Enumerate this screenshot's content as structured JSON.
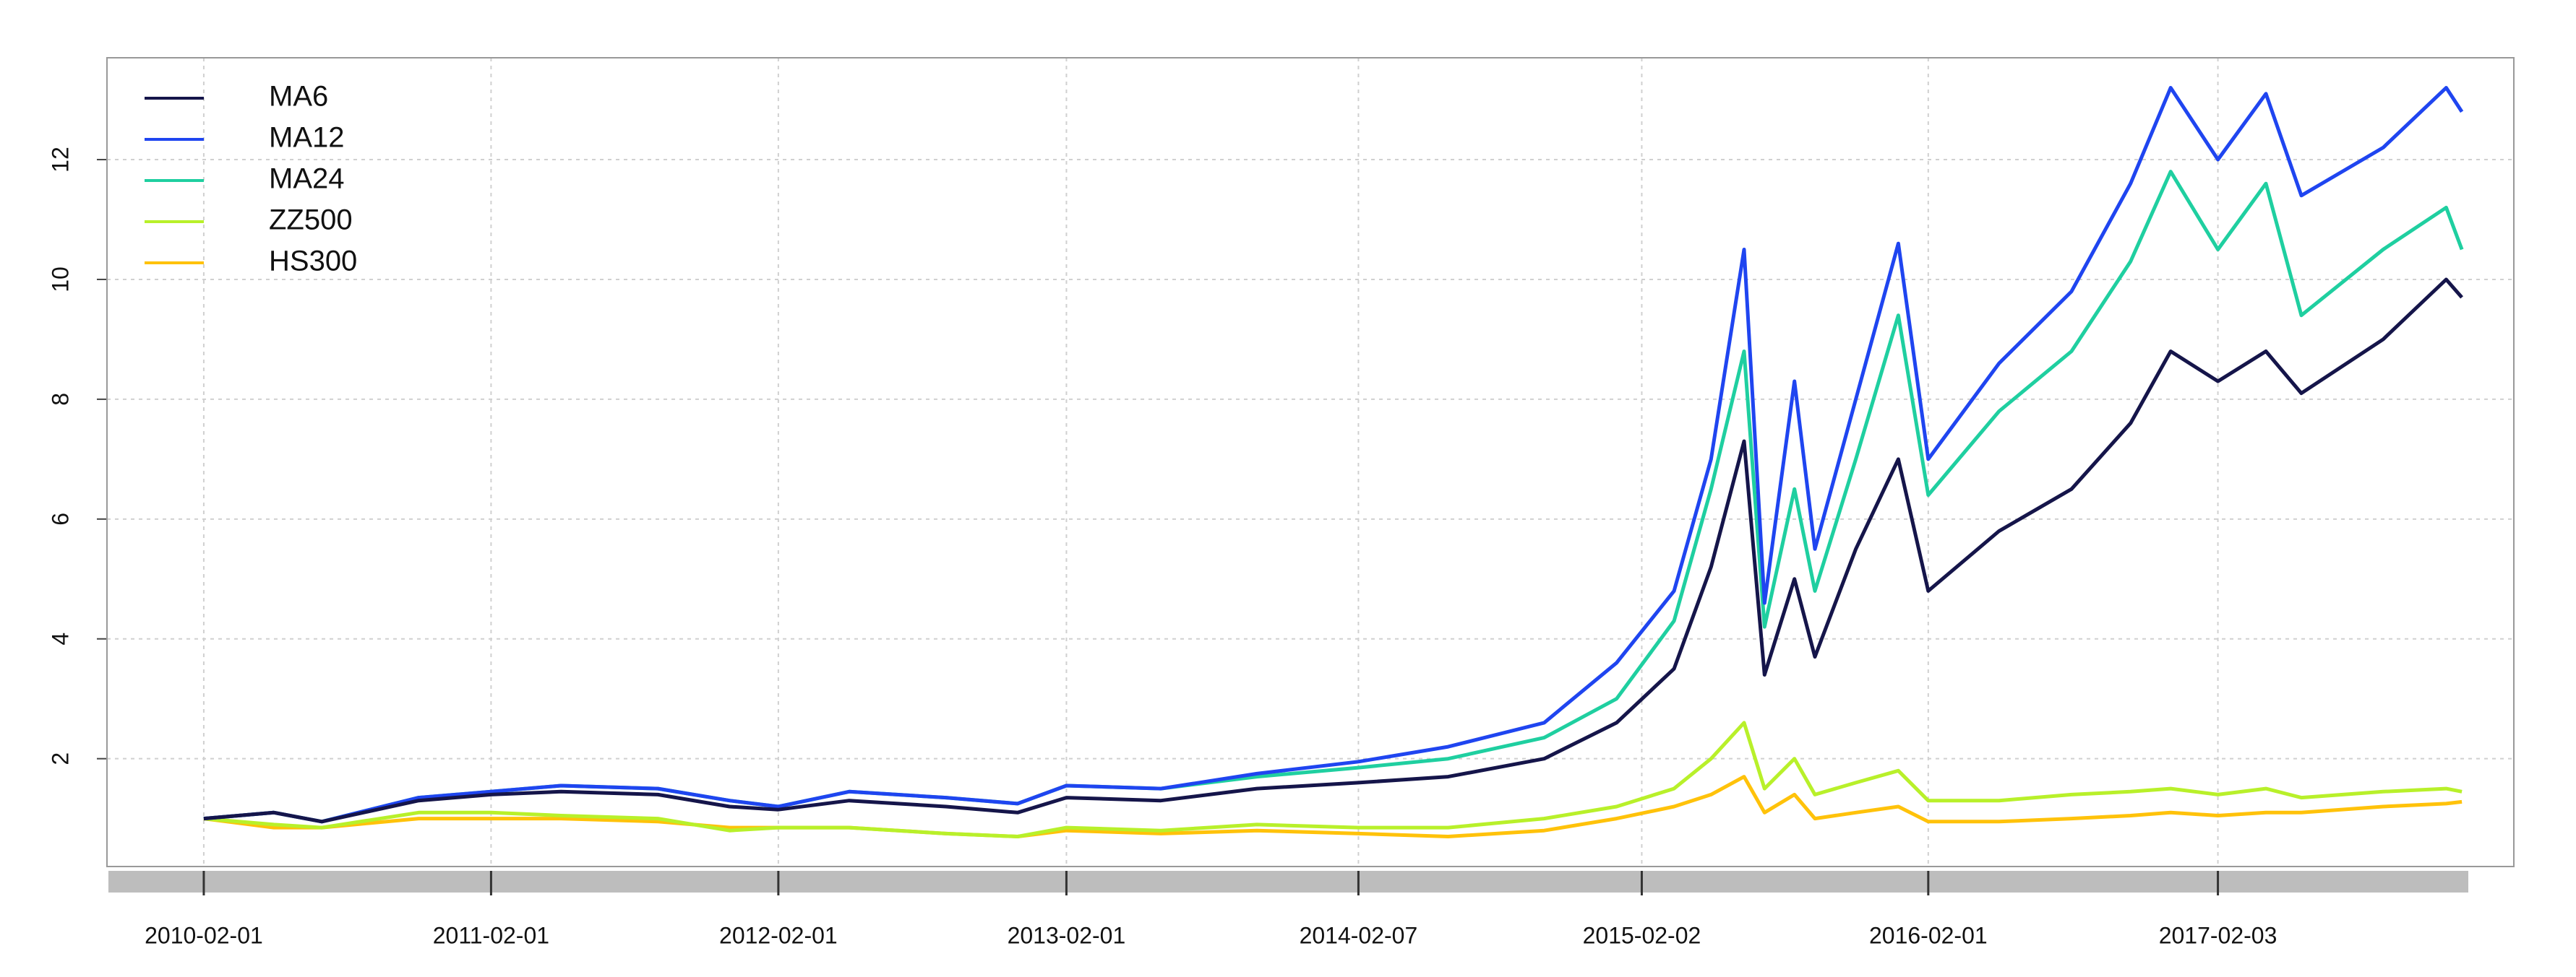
{
  "chart_data": {
    "type": "line",
    "x": [
      "2010-02-01",
      "2010-05-01",
      "2010-07-01",
      "2010-11-01",
      "2011-02-01",
      "2011-05-01",
      "2011-09-01",
      "2011-12-01",
      "2012-02-01",
      "2012-05-01",
      "2012-09-01",
      "2012-12-01",
      "2013-02-01",
      "2013-06-01",
      "2013-10-01",
      "2014-02-07",
      "2014-06-01",
      "2014-10-01",
      "2015-01-01",
      "2015-03-15",
      "2015-05-01",
      "2015-06-12",
      "2015-07-08",
      "2015-08-15",
      "2015-09-10",
      "2015-11-01",
      "2015-12-25",
      "2016-02-01",
      "2016-05-01",
      "2016-08-01",
      "2016-10-15",
      "2016-12-05",
      "2017-02-03",
      "2017-04-05",
      "2017-05-20",
      "2017-09-01",
      "2017-11-20",
      "2017-12-10"
    ],
    "series": [
      {
        "name": "MA6",
        "color": "#15154a",
        "values": [
          1.0,
          1.1,
          0.95,
          1.3,
          1.4,
          1.45,
          1.4,
          1.2,
          1.15,
          1.3,
          1.2,
          1.1,
          1.35,
          1.3,
          1.5,
          1.6,
          1.7,
          2.0,
          2.6,
          3.5,
          5.2,
          7.3,
          3.4,
          5.0,
          3.7,
          5.5,
          7.0,
          4.8,
          5.8,
          6.5,
          7.6,
          8.8,
          8.3,
          8.8,
          8.1,
          9.0,
          10.0,
          9.7
        ]
      },
      {
        "name": "MA12",
        "color": "#1f45f0",
        "values": [
          1.0,
          1.1,
          0.95,
          1.35,
          1.45,
          1.55,
          1.5,
          1.3,
          1.2,
          1.45,
          1.35,
          1.25,
          1.55,
          1.5,
          1.75,
          1.95,
          2.2,
          2.6,
          3.6,
          4.8,
          7.0,
          10.5,
          4.6,
          8.3,
          5.5,
          8.0,
          10.6,
          7.0,
          8.6,
          9.8,
          11.6,
          13.2,
          12.0,
          13.1,
          11.4,
          12.2,
          13.2,
          12.8
        ]
      },
      {
        "name": "MA24",
        "color": "#1fcfa0",
        "values": [
          1.0,
          1.1,
          0.95,
          1.35,
          1.45,
          1.55,
          1.5,
          1.3,
          1.2,
          1.45,
          1.35,
          1.25,
          1.55,
          1.5,
          1.7,
          1.85,
          2.0,
          2.35,
          3.0,
          4.3,
          6.5,
          8.8,
          4.2,
          6.5,
          4.8,
          7.0,
          9.4,
          6.4,
          7.8,
          8.8,
          10.3,
          11.8,
          10.5,
          11.6,
          9.4,
          10.5,
          11.2,
          10.5
        ]
      },
      {
        "name": "ZZ500",
        "color": "#b8f02a",
        "values": [
          1.0,
          0.9,
          0.85,
          1.1,
          1.1,
          1.05,
          1.0,
          0.8,
          0.85,
          0.85,
          0.75,
          0.7,
          0.85,
          0.8,
          0.9,
          0.85,
          0.85,
          1.0,
          1.2,
          1.5,
          2.0,
          2.6,
          1.5,
          2.0,
          1.4,
          1.6,
          1.8,
          1.3,
          1.3,
          1.4,
          1.45,
          1.5,
          1.4,
          1.5,
          1.35,
          1.45,
          1.5,
          1.45
        ]
      },
      {
        "name": "HS300",
        "color": "#ffc20a",
        "values": [
          1.0,
          0.85,
          0.85,
          1.0,
          1.0,
          1.0,
          0.95,
          0.85,
          0.85,
          0.85,
          0.75,
          0.7,
          0.8,
          0.75,
          0.8,
          0.75,
          0.7,
          0.8,
          1.0,
          1.2,
          1.4,
          1.7,
          1.1,
          1.4,
          1.0,
          1.1,
          1.2,
          0.95,
          0.95,
          1.0,
          1.05,
          1.1,
          1.05,
          1.1,
          1.1,
          1.2,
          1.25,
          1.28
        ]
      }
    ],
    "xlim": [
      "2009-10-01",
      "2018-02-14"
    ],
    "xticks": [
      "2010-02-01",
      "2011-02-01",
      "2012-02-01",
      "2013-02-01",
      "2014-02-07",
      "2015-02-02",
      "2016-02-01",
      "2017-02-03"
    ],
    "ylim": [
      0.2,
      13.7
    ],
    "yticks": [
      2,
      4,
      6,
      8,
      10,
      12
    ],
    "grid": true,
    "legend": "top-left"
  }
}
